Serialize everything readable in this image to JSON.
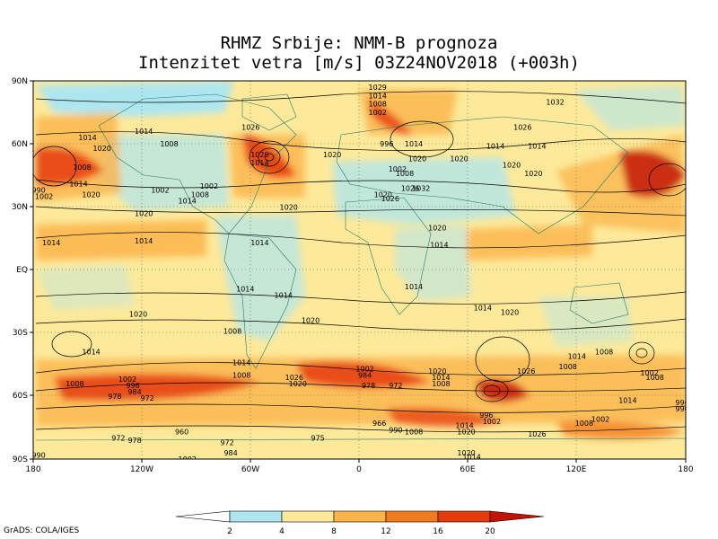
{
  "title_line1": "RHMZ Srbije: NMM-B prognoza",
  "title_line2": "Intenzitet vetra [m/s] 03Z24NOV2018 (+003h)",
  "credit": "GrADS: COLA/IGES",
  "lat_labels": [
    "90N",
    "60N",
    "30N",
    "EQ",
    "30S",
    "60S",
    "90S"
  ],
  "lon_labels": [
    "180",
    "120W",
    "60W",
    "0",
    "60E",
    "120E",
    "180"
  ],
  "colorbar": {
    "ticks": [
      "2",
      "4",
      "8",
      "12",
      "16",
      "20"
    ],
    "colors": [
      "#ffffff",
      "#aee6f0",
      "#fde99a",
      "#fbb44a",
      "#f47b1c",
      "#e63b0c",
      "#c31306"
    ]
  },
  "isobars": [
    {
      "text": "1029",
      "lon": 10,
      "lat": 87
    },
    {
      "text": "1014",
      "lon": 10,
      "lat": 83
    },
    {
      "text": "1008",
      "lon": 10,
      "lat": 79
    },
    {
      "text": "1002",
      "lon": 10,
      "lat": 75
    },
    {
      "text": "1032",
      "lon": 108,
      "lat": 80
    },
    {
      "text": "1026",
      "lon": 90,
      "lat": 68
    },
    {
      "text": "1014",
      "lon": -150,
      "lat": 63
    },
    {
      "text": "1020",
      "lon": -142,
      "lat": 58
    },
    {
      "text": "1008",
      "lon": -153,
      "lat": 49
    },
    {
      "text": "1014",
      "lon": -155,
      "lat": 41
    },
    {
      "text": "1020",
      "lon": -148,
      "lat": 36
    },
    {
      "text": "1014",
      "lon": -119,
      "lat": 66
    },
    {
      "text": "1008",
      "lon": -105,
      "lat": 60
    },
    {
      "text": "1002",
      "lon": -110,
      "lat": 38
    },
    {
      "text": "1026",
      "lon": -60,
      "lat": 68
    },
    {
      "text": "1020",
      "lon": -55,
      "lat": 55
    },
    {
      "text": "1014",
      "lon": -55,
      "lat": 51
    },
    {
      "text": "1002",
      "lon": -83,
      "lat": 40
    },
    {
      "text": "1008",
      "lon": -88,
      "lat": 36
    },
    {
      "text": "1014",
      "lon": -95,
      "lat": 33
    },
    {
      "text": "1020",
      "lon": -119,
      "lat": 27
    },
    {
      "text": "1020",
      "lon": -39,
      "lat": 30
    },
    {
      "text": "1014",
      "lon": -119,
      "lat": 14
    },
    {
      "text": "1014",
      "lon": -170,
      "lat": 13
    },
    {
      "text": "990",
      "lon": -177,
      "lat": 38
    },
    {
      "text": "1002",
      "lon": -174,
      "lat": 35
    },
    {
      "text": "996",
      "lon": 15,
      "lat": 60
    },
    {
      "text": "1020",
      "lon": -15,
      "lat": 55
    },
    {
      "text": "1014",
      "lon": 30,
      "lat": 60
    },
    {
      "text": "1020",
      "lon": 32,
      "lat": 53
    },
    {
      "text": "1002",
      "lon": 21,
      "lat": 48
    },
    {
      "text": "1008",
      "lon": 25,
      "lat": 46
    },
    {
      "text": "1020",
      "lon": 13,
      "lat": 36
    },
    {
      "text": "1026",
      "lon": 17,
      "lat": 34
    },
    {
      "text": "1026",
      "lon": 28,
      "lat": 39
    },
    {
      "text": "1032",
      "lon": 34,
      "lat": 39
    },
    {
      "text": "1020",
      "lon": 55,
      "lat": 53
    },
    {
      "text": "1014",
      "lon": 75,
      "lat": 59
    },
    {
      "text": "1020",
      "lon": 84,
      "lat": 50
    },
    {
      "text": "1014",
      "lon": 98,
      "lat": 59
    },
    {
      "text": "1020",
      "lon": 96,
      "lat": 46
    },
    {
      "text": "1020",
      "lon": 43,
      "lat": 20
    },
    {
      "text": "1014",
      "lon": 44,
      "lat": 12
    },
    {
      "text": "1014",
      "lon": -55,
      "lat": 13
    },
    {
      "text": "1014",
      "lon": -63,
      "lat": -9
    },
    {
      "text": "1014",
      "lon": -42,
      "lat": -12
    },
    {
      "text": "1014",
      "lon": 30,
      "lat": -8
    },
    {
      "text": "1014",
      "lon": 68,
      "lat": -18
    },
    {
      "text": "1020",
      "lon": -122,
      "lat": -21
    },
    {
      "text": "1020",
      "lon": -27,
      "lat": -24
    },
    {
      "text": "1020",
      "lon": 83,
      "lat": -20
    },
    {
      "text": "1008",
      "lon": -70,
      "lat": -29
    },
    {
      "text": "1014",
      "lon": -148,
      "lat": -39
    },
    {
      "text": "1014",
      "lon": -65,
      "lat": -44
    },
    {
      "text": "1008",
      "lon": -65,
      "lat": -50
    },
    {
      "text": "1014",
      "lon": 120,
      "lat": -41
    },
    {
      "text": "1008",
      "lon": 135,
      "lat": -39
    },
    {
      "text": "1008",
      "lon": 115,
      "lat": -46
    },
    {
      "text": "1002",
      "lon": 160,
      "lat": -49
    },
    {
      "text": "1008",
      "lon": 163,
      "lat": -51
    },
    {
      "text": "1002",
      "lon": -128,
      "lat": -52
    },
    {
      "text": "996",
      "lon": -125,
      "lat": -55
    },
    {
      "text": "984",
      "lon": -124,
      "lat": -58
    },
    {
      "text": "978",
      "lon": -135,
      "lat": -60
    },
    {
      "text": "972",
      "lon": -117,
      "lat": -61
    },
    {
      "text": "1008",
      "lon": -157,
      "lat": -54
    },
    {
      "text": "1026",
      "lon": -36,
      "lat": -51
    },
    {
      "text": "1020",
      "lon": -34,
      "lat": -54
    },
    {
      "text": "1002",
      "lon": 3,
      "lat": -47
    },
    {
      "text": "984",
      "lon": 3,
      "lat": -50
    },
    {
      "text": "978",
      "lon": 5,
      "lat": -55
    },
    {
      "text": "972",
      "lon": 20,
      "lat": -55
    },
    {
      "text": "1020",
      "lon": 43,
      "lat": -48
    },
    {
      "text": "1014",
      "lon": 45,
      "lat": -51
    },
    {
      "text": "1008",
      "lon": 45,
      "lat": -54
    },
    {
      "text": "1026",
      "lon": 92,
      "lat": -48
    },
    {
      "text": "1014",
      "lon": 148,
      "lat": -62
    },
    {
      "text": "996",
      "lon": 178,
      "lat": -63
    },
    {
      "text": "990",
      "lon": 178,
      "lat": -66
    },
    {
      "text": "996",
      "lon": 70,
      "lat": -69
    },
    {
      "text": "1002",
      "lon": 73,
      "lat": -72
    },
    {
      "text": "1014",
      "lon": 58,
      "lat": -74
    },
    {
      "text": "1020",
      "lon": 59,
      "lat": -77
    },
    {
      "text": "1026",
      "lon": 98,
      "lat": -78
    },
    {
      "text": "1008",
      "lon": 124,
      "lat": -73
    },
    {
      "text": "1002",
      "lon": 133,
      "lat": -71
    },
    {
      "text": "966",
      "lon": 11,
      "lat": -73
    },
    {
      "text": "990",
      "lon": 20,
      "lat": -76
    },
    {
      "text": "1008",
      "lon": 30,
      "lat": -77
    },
    {
      "text": "960",
      "lon": -98,
      "lat": -77
    },
    {
      "text": "972",
      "lon": -133,
      "lat": -80
    },
    {
      "text": "978",
      "lon": -124,
      "lat": -81
    },
    {
      "text": "972",
      "lon": -73,
      "lat": -82
    },
    {
      "text": "975",
      "lon": -23,
      "lat": -80
    },
    {
      "text": "984",
      "lon": -71,
      "lat": -87
    },
    {
      "text": "990",
      "lon": -177,
      "lat": -88
    },
    {
      "text": "1002",
      "lon": -95,
      "lat": -90
    },
    {
      "text": "1020",
      "lon": 59,
      "lat": -87
    },
    {
      "text": "1014",
      "lon": 62,
      "lat": -89
    }
  ]
}
